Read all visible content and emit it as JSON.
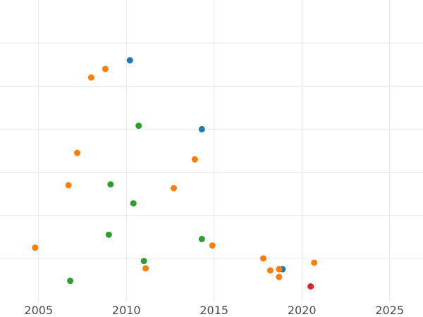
{
  "chart_data": {
    "type": "scatter",
    "title": "",
    "xlabel": "",
    "ylabel": "",
    "xlim": [
      2002.8,
      2026.9
    ],
    "ylim": [
      0,
      7
    ],
    "x_ticks": [
      2005,
      2010,
      2015,
      2020,
      2025
    ],
    "x_tick_labels": [
      "2005",
      "2010",
      "2015",
      "2020",
      "2025"
    ],
    "y_gridlines": [
      1,
      2,
      3,
      4,
      5,
      6
    ],
    "y_tick_labels_visible": false,
    "grid": true,
    "legend": "none",
    "series": [
      {
        "color": "#1f77b4",
        "points": [
          {
            "x": 2010.2,
            "y": 5.6
          },
          {
            "x": 2014.3,
            "y": 4.0
          },
          {
            "x": 2018.9,
            "y": 0.75
          }
        ]
      },
      {
        "color": "#ff7f0e",
        "points": [
          {
            "x": 2004.8,
            "y": 1.25
          },
          {
            "x": 2006.7,
            "y": 2.7
          },
          {
            "x": 2007.2,
            "y": 3.45
          },
          {
            "x": 2008.0,
            "y": 5.2
          },
          {
            "x": 2008.8,
            "y": 5.4
          },
          {
            "x": 2011.1,
            "y": 0.77
          },
          {
            "x": 2012.7,
            "y": 2.63
          },
          {
            "x": 2013.9,
            "y": 3.3
          },
          {
            "x": 2014.9,
            "y": 1.3
          },
          {
            "x": 2017.8,
            "y": 1.0
          },
          {
            "x": 2018.2,
            "y": 0.72
          },
          {
            "x": 2018.7,
            "y": 0.57
          },
          {
            "x": 2018.7,
            "y": 0.75
          },
          {
            "x": 2020.7,
            "y": 0.9
          }
        ]
      },
      {
        "color": "#2ca02c",
        "points": [
          {
            "x": 2006.8,
            "y": 0.48
          },
          {
            "x": 2009.0,
            "y": 1.55
          },
          {
            "x": 2009.1,
            "y": 2.72
          },
          {
            "x": 2010.4,
            "y": 2.28
          },
          {
            "x": 2010.7,
            "y": 4.08
          },
          {
            "x": 2011.0,
            "y": 0.94
          },
          {
            "x": 2014.3,
            "y": 1.45
          }
        ]
      },
      {
        "color": "#d62728",
        "points": [
          {
            "x": 2020.5,
            "y": 0.35
          }
        ]
      }
    ]
  }
}
